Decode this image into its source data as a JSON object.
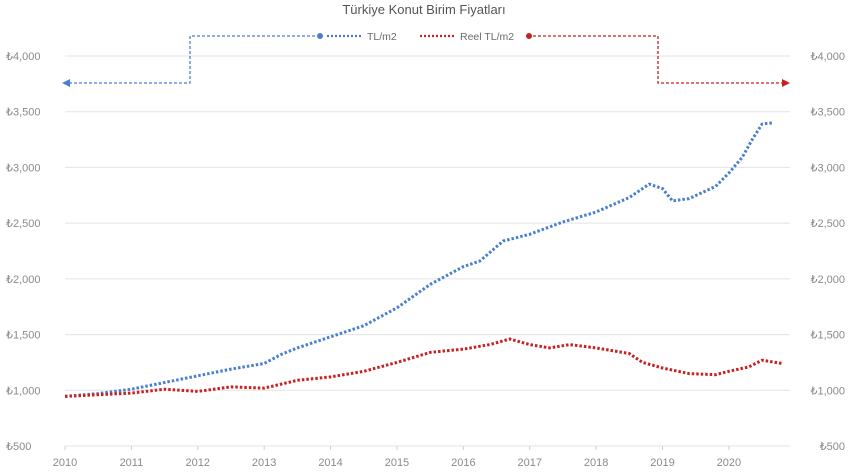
{
  "chart_data": {
    "type": "line",
    "title": "Türkiye Konut Birim Fiyatları",
    "xlabel": "",
    "ylabel": "",
    "x_ticks": [
      "2010",
      "2011",
      "2012",
      "2013",
      "2014",
      "2015",
      "2016",
      "2017",
      "2018",
      "2019",
      "2020"
    ],
    "xlim": [
      2010,
      2020.92
    ],
    "ylim": [
      500,
      4000
    ],
    "y_ticks": [
      "₺500",
      "₺1,000",
      "₺1,500",
      "₺2,000",
      "₺2,500",
      "₺3,000",
      "₺3,500",
      "₺4,000"
    ],
    "y_tick_values": [
      500,
      1000,
      1500,
      2000,
      2500,
      3000,
      3500,
      4000
    ],
    "grid": true,
    "legend_position": "top",
    "series": [
      {
        "name": "TL/m2",
        "color": "#4a7fd0",
        "style": "dotted",
        "axis": "left",
        "points": [
          [
            2010.0,
            945
          ],
          [
            2010.5,
            970
          ],
          [
            2011.0,
            1010
          ],
          [
            2011.5,
            1070
          ],
          [
            2012.0,
            1130
          ],
          [
            2012.5,
            1190
          ],
          [
            2013.0,
            1240
          ],
          [
            2013.25,
            1320
          ],
          [
            2013.5,
            1380
          ],
          [
            2014.0,
            1480
          ],
          [
            2014.5,
            1580
          ],
          [
            2015.0,
            1740
          ],
          [
            2015.5,
            1950
          ],
          [
            2016.0,
            2110
          ],
          [
            2016.25,
            2160
          ],
          [
            2016.6,
            2340
          ],
          [
            2017.0,
            2400
          ],
          [
            2017.5,
            2510
          ],
          [
            2018.0,
            2600
          ],
          [
            2018.5,
            2730
          ],
          [
            2018.8,
            2850
          ],
          [
            2019.0,
            2810
          ],
          [
            2019.15,
            2700
          ],
          [
            2019.4,
            2720
          ],
          [
            2019.8,
            2830
          ],
          [
            2020.0,
            2950
          ],
          [
            2020.2,
            3090
          ],
          [
            2020.35,
            3250
          ],
          [
            2020.5,
            3390
          ],
          [
            2020.65,
            3400
          ]
        ]
      },
      {
        "name": "Reel TL/m2",
        "color": "#c8211f",
        "style": "dotted",
        "axis": "right",
        "points": [
          [
            2010.0,
            945
          ],
          [
            2010.5,
            960
          ],
          [
            2011.0,
            975
          ],
          [
            2011.5,
            1010
          ],
          [
            2012.0,
            990
          ],
          [
            2012.5,
            1030
          ],
          [
            2013.0,
            1020
          ],
          [
            2013.5,
            1090
          ],
          [
            2014.0,
            1120
          ],
          [
            2014.5,
            1170
          ],
          [
            2015.0,
            1250
          ],
          [
            2015.5,
            1340
          ],
          [
            2016.0,
            1370
          ],
          [
            2016.4,
            1410
          ],
          [
            2016.7,
            1460
          ],
          [
            2017.0,
            1410
          ],
          [
            2017.3,
            1380
          ],
          [
            2017.6,
            1410
          ],
          [
            2018.0,
            1380
          ],
          [
            2018.5,
            1330
          ],
          [
            2018.7,
            1250
          ],
          [
            2019.0,
            1200
          ],
          [
            2019.4,
            1150
          ],
          [
            2019.8,
            1140
          ],
          [
            2020.0,
            1170
          ],
          [
            2020.3,
            1210
          ],
          [
            2020.5,
            1270
          ],
          [
            2020.8,
            1240
          ]
        ]
      }
    ],
    "annotations": [
      {
        "label": "TL/m2",
        "points_to": "left axis"
      },
      {
        "label": "Reel TL/m2",
        "points_to": "right axis"
      }
    ]
  }
}
